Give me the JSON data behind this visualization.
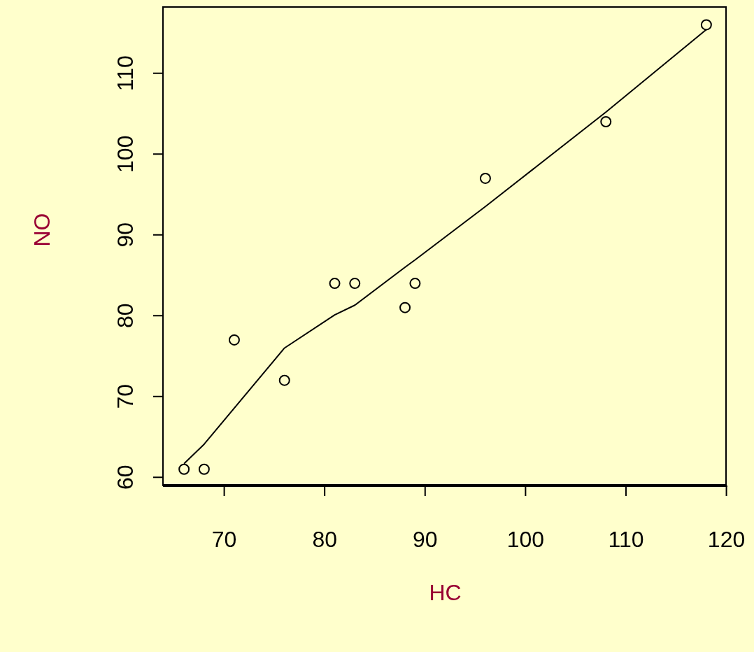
{
  "chart_data": {
    "type": "scatter",
    "xlabel": "HC",
    "ylabel": "NO",
    "xlim": [
      63.9,
      120.1
    ],
    "ylim": [
      58.9,
      118.2
    ],
    "xticks": [
      70,
      80,
      90,
      100,
      110,
      120
    ],
    "yticks": [
      60,
      70,
      80,
      90,
      100,
      110
    ],
    "grid": false,
    "legend": false,
    "series": [
      {
        "color": "#000000",
        "marker": "circle",
        "x": [
          66,
          68,
          71,
          76,
          81,
          83,
          88,
          89,
          96,
          108,
          118
        ],
        "values": [
          61,
          61,
          77,
          72,
          84,
          84,
          81,
          84,
          97,
          104,
          116
        ]
      },
      {
        "type": "line",
        "color": "#000000",
        "marker": "none",
        "line_style": "solid",
        "x": [
          66,
          68,
          76,
          81,
          83,
          88,
          89,
          96,
          108,
          118
        ],
        "values": [
          61.7,
          64.1,
          76.0,
          80.1,
          81.3,
          86.0,
          86.9,
          93.5,
          105.2,
          115.4
        ]
      }
    ]
  }
}
